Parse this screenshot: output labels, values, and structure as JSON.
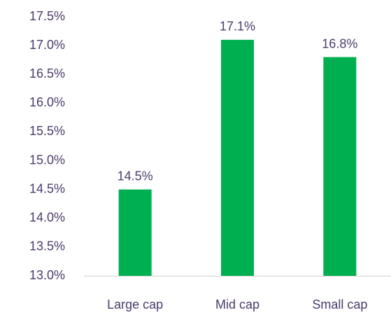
{
  "chart_data": {
    "type": "bar",
    "categories": [
      "Large cap",
      "Mid cap",
      "Small cap"
    ],
    "values": [
      14.5,
      17.1,
      16.8
    ],
    "value_labels": [
      "14.5%",
      "17.1%",
      "16.8%"
    ],
    "ylim": [
      13.0,
      17.5
    ],
    "y_ticks": [
      13.0,
      13.5,
      14.0,
      14.5,
      15.0,
      15.5,
      16.0,
      16.5,
      17.0,
      17.5
    ],
    "y_tick_labels": [
      "13.0%",
      "13.5%",
      "14.0%",
      "14.5%",
      "15.0%",
      "15.5%",
      "16.0%",
      "16.5%",
      "17.0%",
      "17.5%"
    ],
    "grid": false,
    "legend": "none"
  },
  "colors": {
    "bar": "#00b050",
    "text": "#4b3b6b",
    "axis": "#d0d0d0"
  }
}
